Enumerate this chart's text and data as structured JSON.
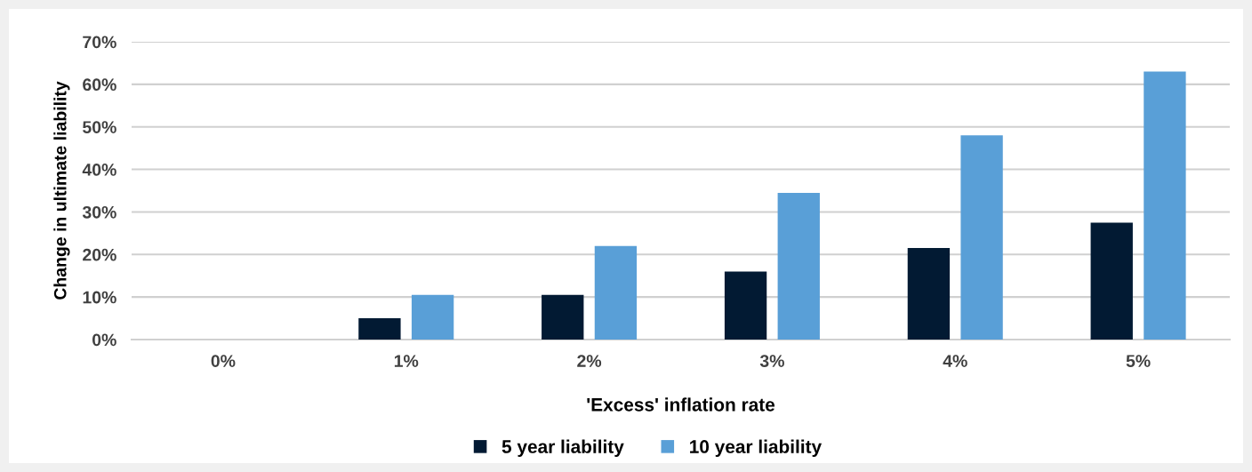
{
  "chart_data": {
    "type": "bar",
    "xlabel": "'Excess' inflation rate",
    "ylabel": "Change in ultimate liability",
    "categories": [
      "0%",
      "1%",
      "2%",
      "3%",
      "4%",
      "5%"
    ],
    "series": [
      {
        "name": "5 year liability",
        "color": "#021a33",
        "values": [
          0,
          5,
          10.5,
          16,
          21.5,
          27.5
        ]
      },
      {
        "name": "10 year liability",
        "color": "#599fd7",
        "values": [
          0,
          10.5,
          22,
          34.5,
          48,
          63
        ]
      }
    ],
    "ylim": [
      0,
      70
    ],
    "yticks": [
      {
        "value": 0,
        "label": "0%"
      },
      {
        "value": 10,
        "label": "10%"
      },
      {
        "value": 20,
        "label": "20%"
      },
      {
        "value": 30,
        "label": "30%"
      },
      {
        "value": 40,
        "label": "40%"
      },
      {
        "value": 50,
        "label": "50%"
      },
      {
        "value": 60,
        "label": "60%"
      },
      {
        "value": 70,
        "label": "70%"
      }
    ],
    "grid": "y",
    "legend": "bottom"
  }
}
